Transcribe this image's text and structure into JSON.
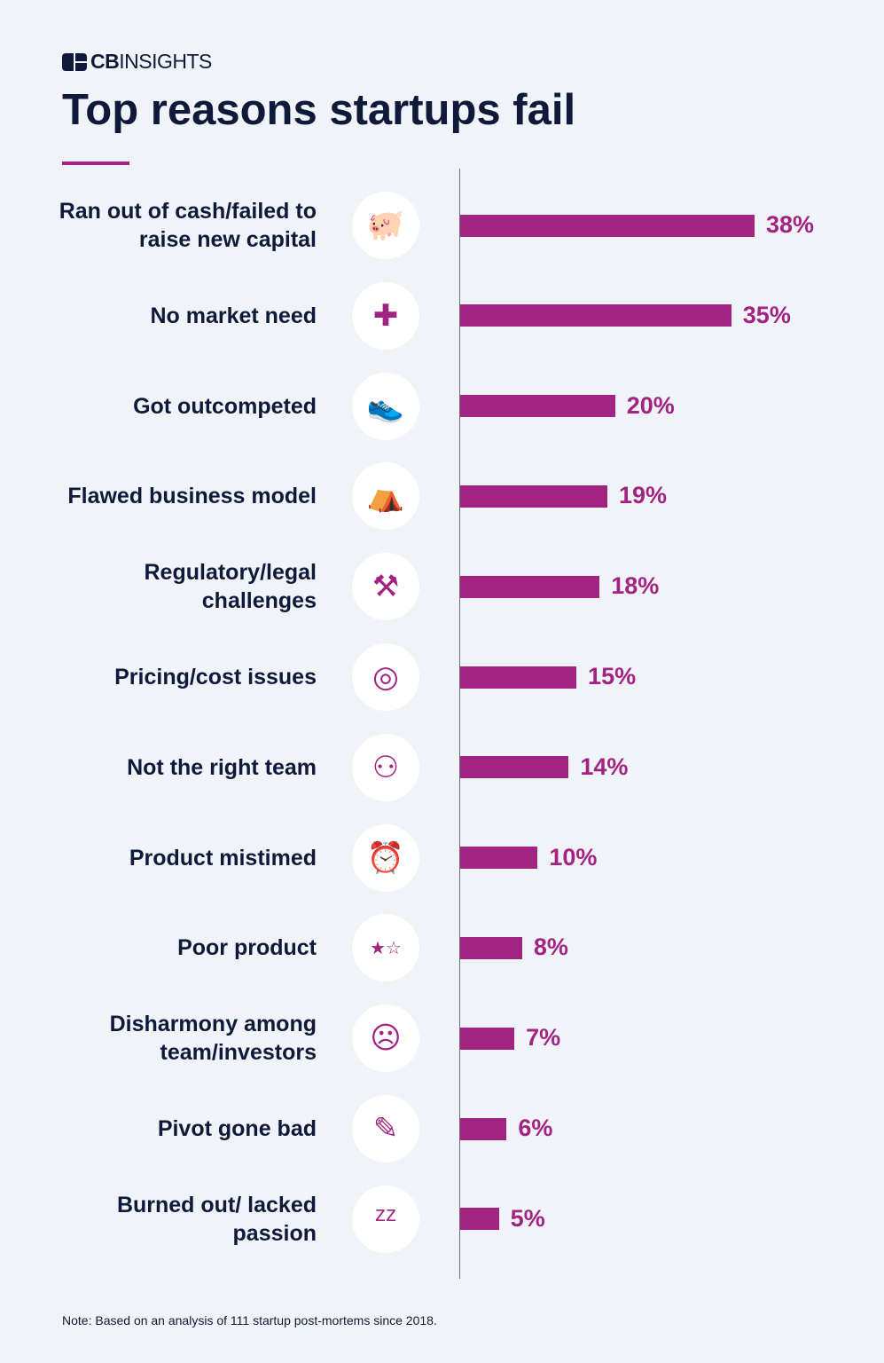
{
  "brand": {
    "logo_text_bold": "CB",
    "logo_text": "INSIGHTS"
  },
  "chart_data": {
    "type": "bar",
    "orientation": "horizontal",
    "title": "Top reasons startups fail",
    "categories": [
      "Ran out of cash/failed to raise new capital",
      "No market need",
      "Got outcompeted",
      "Flawed business model",
      "Regulatory/legal challenges",
      "Pricing/cost issues",
      "Not the right team",
      "Product mistimed",
      "Poor product",
      "Disharmony among team/investors",
      "Pivot gone bad",
      "Burned out/ lacked passion"
    ],
    "values": [
      38,
      35,
      20,
      19,
      18,
      15,
      14,
      10,
      8,
      7,
      6,
      5
    ],
    "data_labels": [
      "38%",
      "35%",
      "20%",
      "19%",
      "18%",
      "15%",
      "14%",
      "10%",
      "8%",
      "7%",
      "6%",
      "5%"
    ],
    "icons": [
      "piggy-bank-hammer-icon",
      "puzzle-piece-icon",
      "running-shoe-icon",
      "tent-icon",
      "gavel-icon",
      "coins-icon",
      "walking-people-icon",
      "alarm-clock-icon",
      "star-rating-icon",
      "facepalm-person-icon",
      "broken-pencil-icon",
      "sleep-zzz-icon"
    ],
    "xlim": [
      0,
      40
    ],
    "grid": false,
    "bar_color": "#a32383"
  },
  "note": "Note: Based on an analysis of 111 startup post-mortems since 2018."
}
